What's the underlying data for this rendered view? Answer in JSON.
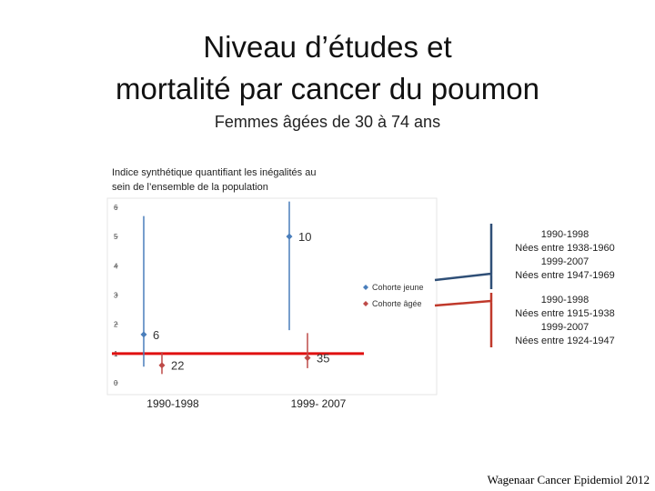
{
  "header": {
    "title_line1": "Niveau d’études et",
    "title_line2": "mortalité par cancer du poumon",
    "subtitle": "Femmes âgées de 30 à 74 ans"
  },
  "note_line1": "Indice synthétique quantifiant les inégalités au",
  "note_line2": "sein de l’ensemble de la population",
  "chart_data": {
    "type": "scatter",
    "categories": [
      "1990-1998",
      "1999- 2007"
    ],
    "ylim": [
      0,
      6
    ],
    "yticks": [
      "0",
      "1",
      "2",
      "3",
      "4",
      "5",
      "6"
    ],
    "reference_line": 1,
    "legend": [
      "Cohorte jeune",
      "Cohorte âgée"
    ],
    "series": [
      {
        "name": "Cohorte jeune",
        "color": "#4a7ebb",
        "points": [
          {
            "category": "1990-1998",
            "y": 1.65,
            "low": 0.55,
            "high": 5.7,
            "label": "6"
          },
          {
            "category": "1999- 2007",
            "y": 5.0,
            "low": 1.8,
            "high": 6.2,
            "label": "10"
          }
        ]
      },
      {
        "name": "Cohorte âgée",
        "color": "#be4b48",
        "points": [
          {
            "category": "1990-1998",
            "y": 0.6,
            "low": 0.3,
            "high": 1.05,
            "label": "22"
          },
          {
            "category": "1999- 2007",
            "y": 0.85,
            "low": 0.5,
            "high": 1.7,
            "label": "35"
          }
        ]
      }
    ],
    "grid": false
  },
  "side_labels": {
    "young": [
      "1990-1998",
      "Nées entre 1938-1960",
      "1999-2007",
      "Nées entre 1947-1969"
    ],
    "old": [
      "1990-1998",
      "Nées entre 1915-1938",
      "1999-2007",
      "Nées entre 1924-1947"
    ]
  },
  "colors": {
    "ref_line": "#e01010",
    "bracket_young": "#2f4f77",
    "bracket_old": "#c0392b"
  },
  "credit": "Wagenaar Cancer Epidemiol 2012"
}
